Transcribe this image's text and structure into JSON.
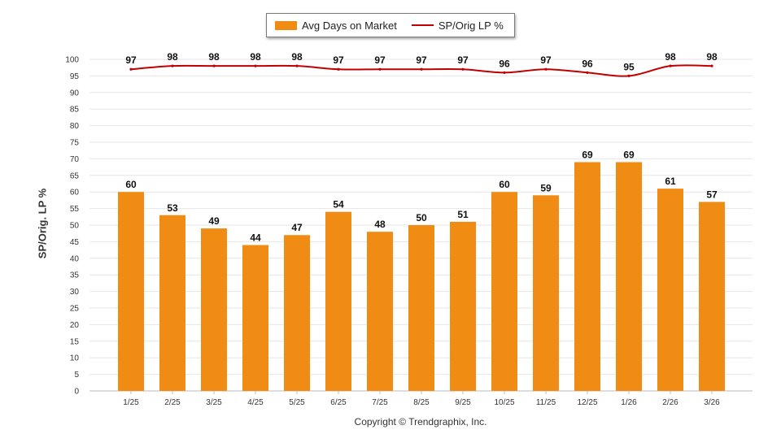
{
  "legend": {
    "bar_label": "Avg Days on Market",
    "line_label": "SP/Orig LP %"
  },
  "ylabel": "SP/Orig. LP %",
  "copyright": "Copyright © Trendgraphix, Inc.",
  "colors": {
    "bar": "#f08c14",
    "line": "#c00000",
    "grid": "#e6e6e6"
  },
  "chart_data": {
    "type": "bar",
    "categories": [
      "1/25",
      "2/25",
      "3/25",
      "4/25",
      "5/25",
      "6/25",
      "7/25",
      "8/25",
      "9/25",
      "10/25",
      "11/25",
      "12/25",
      "1/26",
      "2/26",
      "3/26"
    ],
    "series": [
      {
        "name": "Avg Days on Market",
        "type": "bar",
        "values": [
          60,
          53,
          49,
          44,
          47,
          54,
          48,
          50,
          51,
          60,
          59,
          69,
          69,
          61,
          57
        ]
      },
      {
        "name": "SP/Orig LP %",
        "type": "line",
        "values": [
          97,
          98,
          98,
          98,
          98,
          97,
          97,
          97,
          97,
          96,
          97,
          96,
          95,
          98,
          98
        ]
      }
    ],
    "ylabel": "SP/Orig. LP %",
    "xlabel": "",
    "ylim": [
      0,
      100
    ],
    "yticks": [
      0,
      5,
      10,
      15,
      20,
      25,
      30,
      35,
      40,
      45,
      50,
      55,
      60,
      65,
      70,
      75,
      80,
      85,
      90,
      95,
      100
    ],
    "grid": true,
    "legend_position": "top"
  }
}
